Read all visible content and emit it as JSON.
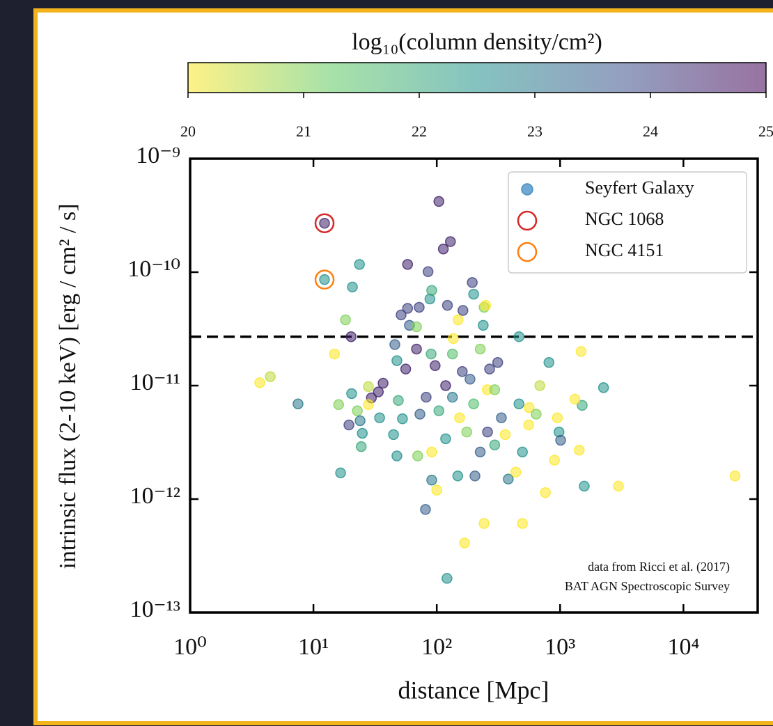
{
  "chart_data": {
    "type": "scatter",
    "x_label": "distance [Mpc]",
    "y_label": "intrinsic flux (2-10 keV) [erg / cm² / s]",
    "colorbar_label": "log₁₀(column density/cm²)",
    "log_x": true,
    "log_y": true,
    "xlim": [
      1,
      40000
    ],
    "ylim": [
      1e-13,
      1e-09
    ],
    "xticks": [
      {
        "value": 1,
        "label": "10⁰"
      },
      {
        "value": 10,
        "label": "10¹"
      },
      {
        "value": 100,
        "label": "10²"
      },
      {
        "value": 1000,
        "label": "10³"
      },
      {
        "value": 10000,
        "label": "10⁴"
      }
    ],
    "yticks": [
      {
        "value": 1e-13,
        "label": "10⁻¹³"
      },
      {
        "value": 1e-12,
        "label": "10⁻¹²"
      },
      {
        "value": 1e-11,
        "label": "10⁻¹¹"
      },
      {
        "value": 1e-10,
        "label": "10⁻¹⁰"
      },
      {
        "value": 1e-09,
        "label": "10⁻⁹"
      }
    ],
    "clim": [
      20,
      25
    ],
    "cticks": [
      20,
      21,
      22,
      23,
      24,
      25
    ],
    "colormap": [
      "#fde725",
      "#5ec962",
      "#21918c",
      "#3b528b",
      "#440154"
    ],
    "alpha": 0.55,
    "hline": 2.7e-11,
    "legend_position": "upper right",
    "series": [
      {
        "name": "Seyfert Galaxy",
        "color": "#6fa8d2",
        "x": [
          3.67,
          4.47,
          7.5,
          16.6,
          18.2,
          20.7,
          23.6,
          20.2,
          14.8,
          16,
          19.4,
          22.7,
          20.4,
          23.9,
          24.9,
          24.4,
          27.9,
          29.5,
          33.6,
          36.7,
          34.4,
          27.9,
          44.6,
          47.5,
          48.8,
          52.7,
          47.5,
          45.7,
          51.4,
          58,
          60,
          58,
          68.5,
          72,
          85,
          88,
          56,
          68.5,
          90,
          104,
          113,
          129,
          122,
          163,
          199,
          194,
          242,
          238,
          249,
          464,
          91,
          149,
          136,
          134,
          97,
          118,
          161,
          225,
          268,
          312,
          812,
          1480,
          2250,
          1510,
          1320,
          950,
          980,
          1010,
          900,
          1430,
          1570,
          2970,
          26200,
          760,
          495,
          242,
          168,
          121,
          81,
          100,
          91,
          148,
          204,
          380,
          437,
          495,
          557,
          464,
          334,
          257,
          199,
          153,
          118,
          91,
          73,
          82,
          104,
          134,
          258,
          295,
          359,
          225,
          561,
          685,
          640,
          175,
          70,
          186,
          295,
          12.3,
          12.3
        ],
        "y": [
          1.06e-11,
          1.2e-11,
          6.9e-12,
          1.7e-12,
          3.8e-11,
          7.4e-11,
          1.17e-10,
          2.7e-11,
          1.9e-11,
          6.8e-12,
          4.5e-12,
          6e-12,
          8.5e-12,
          4.9e-12,
          3.8e-12,
          2.9e-12,
          9.8e-12,
          7.8e-12,
          8.8e-12,
          1.05e-11,
          5.2e-12,
          6.8e-12,
          3.7e-12,
          2.4e-12,
          7.4e-12,
          5.1e-12,
          1.66e-11,
          2.3e-11,
          4.2e-11,
          1.17e-10,
          3.4e-11,
          4.8e-11,
          3.3e-11,
          4.9e-11,
          1.01e-10,
          5.8e-11,
          1.4e-11,
          2.1e-11,
          1.9e-11,
          4.2e-10,
          1.6e-10,
          1.86e-10,
          5.1e-11,
          4.6e-11,
          6.4e-11,
          8.1e-11,
          4.9e-11,
          3.4e-11,
          5.1e-11,
          2.7e-11,
          6.9e-11,
          3.8e-11,
          2.6e-11,
          1.9e-11,
          1.5e-11,
          1e-11,
          1.33e-11,
          2.1e-11,
          1.4e-11,
          1.6e-11,
          1.6e-11,
          2e-11,
          9.6e-12,
          6.7e-12,
          7.6e-12,
          5.2e-12,
          3.9e-12,
          3.3e-12,
          2.2e-12,
          2.7e-12,
          1.3e-12,
          1.3e-12,
          1.6e-12,
          1.14e-12,
          6.1e-13,
          6.1e-13,
          4.1e-13,
          2e-13,
          8.1e-13,
          1.2e-12,
          1.47e-12,
          1.6e-12,
          1.6e-12,
          1.5e-12,
          1.73e-12,
          2.6e-12,
          4.5e-12,
          6.9e-12,
          5.2e-12,
          9.2e-12,
          6.9e-12,
          5.2e-12,
          3.4e-12,
          2.6e-12,
          5.6e-12,
          7.9e-12,
          6e-12,
          7.9e-12,
          3.9e-12,
          3e-12,
          3.7e-12,
          2.6e-12,
          6.4e-12,
          1e-11,
          5.6e-12,
          3.9e-12,
          2.4e-12,
          1.14e-11,
          9.2e-12,
          2.7e-10,
          8.6e-11
        ],
        "c": [
          20,
          20.5,
          23,
          22.5,
          21,
          22.5,
          22.5,
          24.5,
          20,
          21,
          24,
          21,
          22.5,
          23,
          22.5,
          22,
          20.5,
          24.5,
          24.5,
          24.5,
          22.5,
          20,
          22.5,
          22.5,
          22,
          22.5,
          22.5,
          23.5,
          24,
          24.5,
          23.5,
          24,
          21,
          24,
          24,
          22.5,
          24.5,
          24.5,
          22,
          24.5,
          24.5,
          24.5,
          24,
          24,
          22.5,
          24,
          21,
          22.5,
          20,
          22.5,
          22,
          20,
          20,
          21.5,
          24.5,
          24.5,
          24,
          21,
          24,
          24,
          22.5,
          20,
          22.5,
          22,
          20,
          20,
          22.5,
          23.5,
          20,
          20,
          22.5,
          20,
          20,
          20,
          20,
          20,
          20,
          22.5,
          23.5,
          20,
          23,
          22.5,
          23.5,
          23,
          20,
          22.5,
          20,
          22.5,
          23.5,
          20,
          21.5,
          20,
          22.5,
          20,
          23.5,
          24,
          22,
          23,
          24,
          22,
          20,
          23.5,
          20,
          20.5,
          21,
          21,
          21,
          23.5,
          21,
          24.5,
          22.5
        ]
      },
      {
        "name": "NGC 1068",
        "color": "#d62728",
        "x": [
          12.3
        ],
        "y": [
          2.7e-10
        ]
      },
      {
        "name": "NGC 4151",
        "color": "#ff7f0e",
        "x": [
          12.3
        ],
        "y": [
          8.6e-11
        ]
      }
    ],
    "annotations": [
      "data from Ricci et al. (2017)",
      "BAT AGN Spectroscopic Survey"
    ]
  }
}
